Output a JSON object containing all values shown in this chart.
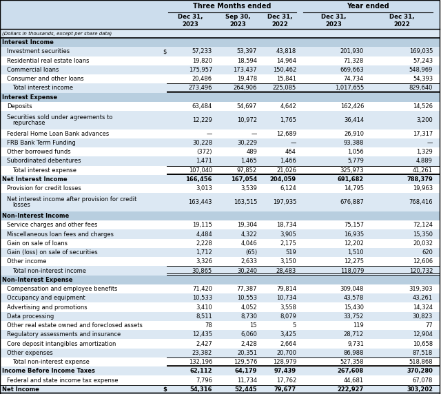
{
  "subtitle_note": "(Dollars in thousands, except per share data)",
  "col_groups": {
    "three_months": "Three Months ended",
    "year": "Year ended"
  },
  "col_headers": [
    "Dec 31,\n2023",
    "Sep 30,\n2023",
    "Dec 31,\n2022",
    "Dec 31,\n2023",
    "Dec 31,\n2022"
  ],
  "rows": [
    {
      "label": "Interest Income",
      "type": "section_header",
      "values": [
        "",
        "",
        "",
        "",
        ""
      ]
    },
    {
      "label": "Investment securities",
      "type": "data",
      "dollar_sign": true,
      "values": [
        "57,233",
        "53,397",
        "43,818",
        "201,930",
        "169,035"
      ]
    },
    {
      "label": "Residential real estate loans",
      "type": "data",
      "values": [
        "19,820",
        "18,594",
        "14,964",
        "71,328",
        "57,243"
      ]
    },
    {
      "label": "Commercial loans",
      "type": "data",
      "values": [
        "175,957",
        "173,437",
        "150,462",
        "669,663",
        "548,969"
      ]
    },
    {
      "label": "Consumer and other loans",
      "type": "data",
      "values": [
        "20,486",
        "19,478",
        "15,841",
        "74,734",
        "54,393"
      ]
    },
    {
      "label": "Total interest income",
      "type": "total",
      "values": [
        "273,496",
        "264,906",
        "225,085",
        "1,017,655",
        "829,640"
      ]
    },
    {
      "label": "Interest Expense",
      "type": "section_header",
      "values": [
        "",
        "",
        "",
        "",
        ""
      ]
    },
    {
      "label": "Deposits",
      "type": "data",
      "values": [
        "63,484",
        "54,697",
        "4,642",
        "162,426",
        "14,526"
      ]
    },
    {
      "label": "Securities sold under agreements to\nrepurchase",
      "type": "data_wrap",
      "values": [
        "12,229",
        "10,972",
        "1,765",
        "36,414",
        "3,200"
      ]
    },
    {
      "label": "Federal Home Loan Bank advances",
      "type": "data",
      "values": [
        "—",
        "—",
        "12,689",
        "26,910",
        "17,317"
      ]
    },
    {
      "label": "FRB Bank Term Funding",
      "type": "data",
      "values": [
        "30,228",
        "30,229",
        "—",
        "93,388",
        "—"
      ]
    },
    {
      "label": "Other borrowed funds",
      "type": "data",
      "values": [
        "(372)",
        "489",
        "464",
        "1,056",
        "1,329"
      ]
    },
    {
      "label": "Subordinated debentures",
      "type": "data",
      "values": [
        "1,471",
        "1,465",
        "1,466",
        "5,779",
        "4,889"
      ]
    },
    {
      "label": "Total interest expense",
      "type": "total",
      "values": [
        "107,040",
        "97,852",
        "21,026",
        "325,973",
        "41,261"
      ]
    },
    {
      "label": "Net Interest Income",
      "type": "bold_row",
      "values": [
        "166,456",
        "167,054",
        "204,059",
        "691,682",
        "788,379"
      ]
    },
    {
      "label": "Provision for credit losses",
      "type": "data",
      "values": [
        "3,013",
        "3,539",
        "6,124",
        "14,795",
        "19,963"
      ]
    },
    {
      "label": "Net interest income after provision for credit\nlosses",
      "type": "data_wrap",
      "values": [
        "163,443",
        "163,515",
        "197,935",
        "676,887",
        "768,416"
      ]
    },
    {
      "label": "Non-Interest Income",
      "type": "section_header",
      "values": [
        "",
        "",
        "",
        "",
        ""
      ]
    },
    {
      "label": "Service charges and other fees",
      "type": "data",
      "values": [
        "19,115",
        "19,304",
        "18,734",
        "75,157",
        "72,124"
      ]
    },
    {
      "label": "Miscellaneous loan fees and charges",
      "type": "data",
      "values": [
        "4,484",
        "4,322",
        "3,905",
        "16,935",
        "15,350"
      ]
    },
    {
      "label": "Gain on sale of loans",
      "type": "data",
      "values": [
        "2,228",
        "4,046",
        "2,175",
        "12,202",
        "20,032"
      ]
    },
    {
      "label": "Gain (loss) on sale of securities",
      "type": "data",
      "values": [
        "1,712",
        "(65)",
        "519",
        "1,510",
        "620"
      ]
    },
    {
      "label": "Other income",
      "type": "data",
      "values": [
        "3,326",
        "2,633",
        "3,150",
        "12,275",
        "12,606"
      ]
    },
    {
      "label": "Total non-interest income",
      "type": "total",
      "values": [
        "30,865",
        "30,240",
        "28,483",
        "118,079",
        "120,732"
      ]
    },
    {
      "label": "Non-Interest Expense",
      "type": "section_header",
      "values": [
        "",
        "",
        "",
        "",
        ""
      ]
    },
    {
      "label": "Compensation and employee benefits",
      "type": "data",
      "values": [
        "71,420",
        "77,387",
        "79,814",
        "309,048",
        "319,303"
      ]
    },
    {
      "label": "Occupancy and equipment",
      "type": "data",
      "values": [
        "10,533",
        "10,553",
        "10,734",
        "43,578",
        "43,261"
      ]
    },
    {
      "label": "Advertising and promotions",
      "type": "data",
      "values": [
        "3,410",
        "4,052",
        "3,558",
        "15,430",
        "14,324"
      ]
    },
    {
      "label": "Data processing",
      "type": "data",
      "values": [
        "8,511",
        "8,730",
        "8,079",
        "33,752",
        "30,823"
      ]
    },
    {
      "label": "Other real estate owned and foreclosed assets",
      "type": "data",
      "values": [
        "78",
        "15",
        "5",
        "119",
        "77"
      ]
    },
    {
      "label": "Regulatory assessments and insurance",
      "type": "data",
      "values": [
        "12,435",
        "6,060",
        "3,425",
        "28,712",
        "12,904"
      ]
    },
    {
      "label": "Core deposit intangibles amortization",
      "type": "data",
      "values": [
        "2,427",
        "2,428",
        "2,664",
        "9,731",
        "10,658"
      ]
    },
    {
      "label": "Other expenses",
      "type": "data",
      "values": [
        "23,382",
        "20,351",
        "20,700",
        "86,988",
        "87,518"
      ]
    },
    {
      "label": "Total non-interest expense",
      "type": "total",
      "values": [
        "132,196",
        "129,576",
        "128,979",
        "527,358",
        "518,868"
      ]
    },
    {
      "label": "Income Before Income Taxes",
      "type": "bold_row",
      "values": [
        "62,112",
        "64,179",
        "97,439",
        "267,608",
        "370,280"
      ]
    },
    {
      "label": "Federal and state income tax expense",
      "type": "data",
      "values": [
        "7,796",
        "11,734",
        "17,762",
        "44,681",
        "67,078"
      ]
    },
    {
      "label": "Net Income",
      "type": "bold_final",
      "dollar_sign": true,
      "values": [
        "54,316",
        "52,445",
        "79,677",
        "222,927",
        "303,202"
      ]
    }
  ],
  "colors": {
    "header_bg": "#ccdded",
    "row_alt_bg": "#dce8f3",
    "row_white_bg": "#ffffff",
    "section_header_bg": "#b8cedf",
    "text_color": "#000000",
    "light_blue_bg": "#dce8f3"
  }
}
